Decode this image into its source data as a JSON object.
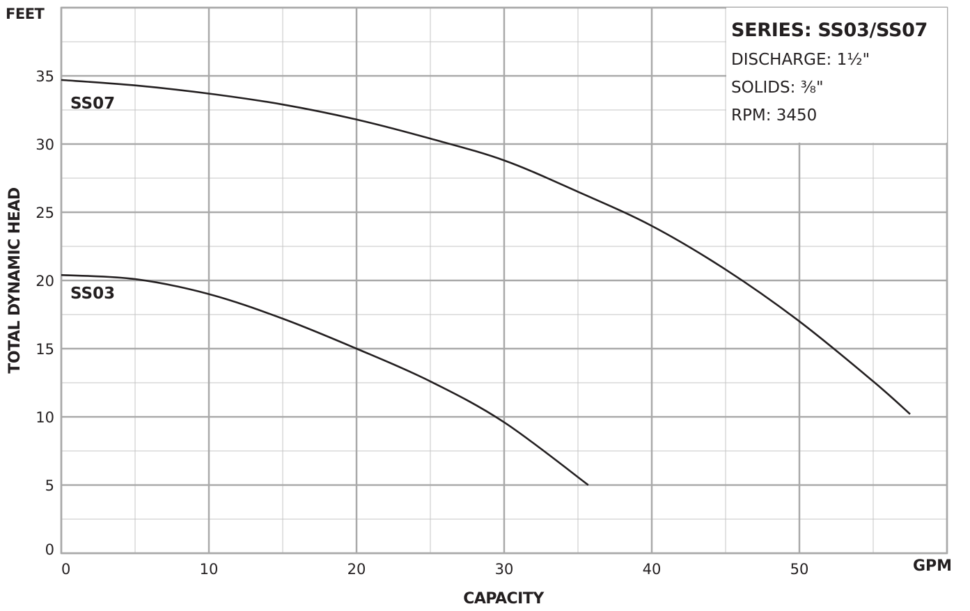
{
  "chart_data": {
    "type": "line",
    "y_unit": "FEET",
    "x_unit": "GPM",
    "xlabel": "CAPACITY",
    "ylabel": "TOTAL DYNAMIC HEAD",
    "xlim": [
      0,
      60
    ],
    "ylim": [
      0,
      40
    ],
    "x_ticks": [
      0,
      10,
      20,
      30,
      40,
      50
    ],
    "y_ticks": [
      0,
      5,
      10,
      15,
      20,
      25,
      30,
      35
    ],
    "x_minor_step": 5,
    "y_minor_step": 2.5,
    "grid": true,
    "series": [
      {
        "name": "SS07",
        "x": [
          0,
          5,
          10,
          15,
          20,
          25,
          30,
          35,
          40,
          45,
          50,
          55,
          57.5
        ],
        "y": [
          34.7,
          34.3,
          33.7,
          32.9,
          31.8,
          30.4,
          28.8,
          26.5,
          24.0,
          20.8,
          17.0,
          12.6,
          10.2
        ]
      },
      {
        "name": "SS03",
        "x": [
          0,
          5,
          10,
          15,
          20,
          25,
          30,
          35.7
        ],
        "y": [
          20.4,
          20.1,
          19.0,
          17.2,
          15.0,
          12.6,
          9.6,
          5.0
        ]
      }
    ],
    "annotation": {
      "title": "SERIES: SS03/SS07",
      "lines": [
        "DISCHARGE: 1½\"",
        "SOLIDS: ⅜\"",
        "RPM: 3450"
      ]
    }
  }
}
